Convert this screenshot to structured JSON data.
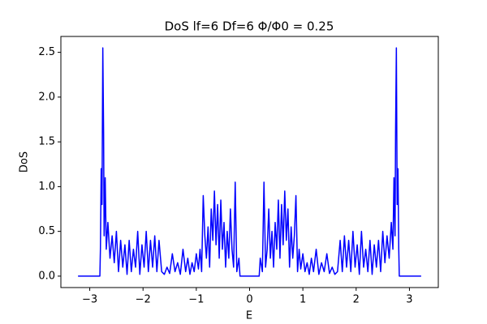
{
  "chart_data": {
    "type": "line",
    "title": "DoS lf=6 Df=6 Φ/Φ0 = 0.25",
    "x_label": "E",
    "y_label": "DoS",
    "xlim": [
      -3.542,
      3.542
    ],
    "ylim": [
      -0.1275,
      2.6775
    ],
    "xticks": [
      {
        "value": -3,
        "label": "−3"
      },
      {
        "value": -2,
        "label": "−2"
      },
      {
        "value": -1,
        "label": "−1"
      },
      0,
      1,
      2,
      3
    ],
    "yticks": [
      {
        "value": 0,
        "label": "0.0"
      },
      0.5,
      {
        "value": 1,
        "label": "1.0"
      },
      1.5,
      {
        "value": 2,
        "label": "2.0"
      },
      2.5
    ],
    "series": [
      {
        "color": "#0000ff",
        "x": [
          -3.22,
          -2.81,
          -2.8,
          -2.785,
          -2.77,
          -2.755,
          -2.74,
          -2.73,
          -2.71,
          -2.69,
          -2.66,
          -2.62,
          -2.58,
          -2.54,
          -2.5,
          -2.46,
          -2.42,
          -2.38,
          -2.34,
          -2.3,
          -2.26,
          -2.22,
          -2.18,
          -2.14,
          -2.1,
          -2.06,
          -2.02,
          -1.98,
          -1.94,
          -1.9,
          -1.86,
          -1.82,
          -1.78,
          -1.74,
          -1.7,
          -1.65,
          -1.6,
          -1.55,
          -1.5,
          -1.45,
          -1.4,
          -1.35,
          -1.3,
          -1.25,
          -1.2,
          -1.16,
          -1.12,
          -1.08,
          -1.04,
          -1.0,
          -0.96,
          -0.93,
          -0.9,
          -0.87,
          -0.84,
          -0.81,
          -0.78,
          -0.75,
          -0.72,
          -0.69,
          -0.66,
          -0.63,
          -0.6,
          -0.57,
          -0.54,
          -0.51,
          -0.48,
          -0.45,
          -0.42,
          -0.39,
          -0.36,
          -0.33,
          -0.3,
          -0.27,
          -0.24,
          -0.2,
          -0.18,
          -0.15,
          0,
          0.15,
          0.18,
          0.2,
          0.24,
          0.27,
          0.3,
          0.33,
          0.36,
          0.39,
          0.42,
          0.45,
          0.48,
          0.51,
          0.54,
          0.57,
          0.6,
          0.63,
          0.66,
          0.69,
          0.72,
          0.75,
          0.78,
          0.81,
          0.84,
          0.87,
          0.9,
          0.93,
          0.96,
          1.0,
          1.04,
          1.08,
          1.12,
          1.16,
          1.2,
          1.25,
          1.3,
          1.35,
          1.4,
          1.45,
          1.5,
          1.55,
          1.6,
          1.65,
          1.7,
          1.74,
          1.78,
          1.82,
          1.86,
          1.9,
          1.94,
          1.98,
          2.02,
          2.06,
          2.1,
          2.14,
          2.18,
          2.22,
          2.26,
          2.3,
          2.34,
          2.38,
          2.42,
          2.46,
          2.5,
          2.54,
          2.58,
          2.62,
          2.66,
          2.69,
          2.71,
          2.73,
          2.74,
          2.755,
          2.77,
          2.785,
          2.8,
          2.81,
          3.22
        ],
        "values": [
          0,
          0,
          0.3,
          1.2,
          0.8,
          2.55,
          1.6,
          0.45,
          1.1,
          0.3,
          0.6,
          0.2,
          0.45,
          0.15,
          0.5,
          0.05,
          0.4,
          0.1,
          0.35,
          0.02,
          0.4,
          0.05,
          0.3,
          0.1,
          0.5,
          0.02,
          0.35,
          0.1,
          0.5,
          0.05,
          0.4,
          0.1,
          0.45,
          0.05,
          0.4,
          0.05,
          0.02,
          0.1,
          0.03,
          0.25,
          0.05,
          0.15,
          0.02,
          0.3,
          0.05,
          0.2,
          0.02,
          0.15,
          0.05,
          0.25,
          0.08,
          0.3,
          0.05,
          0.9,
          0.45,
          0.2,
          0.55,
          0.1,
          0.75,
          0.4,
          0.95,
          0.35,
          0.8,
          0.2,
          0.85,
          0.3,
          0.6,
          0.1,
          0.5,
          0.2,
          0.75,
          0.3,
          0.1,
          1.05,
          0.05,
          0.2,
          0,
          0,
          0,
          0,
          0,
          0.2,
          0.05,
          1.05,
          0.1,
          0.3,
          0.75,
          0.2,
          0.5,
          0.1,
          0.6,
          0.3,
          0.85,
          0.2,
          0.8,
          0.35,
          0.95,
          0.4,
          0.75,
          0.1,
          0.55,
          0.2,
          0.45,
          0.9,
          0.05,
          0.3,
          0.08,
          0.25,
          0.05,
          0.15,
          0.02,
          0.2,
          0.05,
          0.3,
          0.02,
          0.15,
          0.05,
          0.25,
          0.03,
          0.1,
          0.02,
          0.05,
          0.4,
          0.05,
          0.45,
          0.1,
          0.4,
          0.05,
          0.5,
          0.1,
          0.35,
          0.02,
          0.5,
          0.1,
          0.3,
          0.05,
          0.4,
          0.02,
          0.35,
          0.1,
          0.4,
          0.05,
          0.5,
          0.15,
          0.45,
          0.2,
          0.6,
          0.3,
          1.1,
          0.45,
          1.6,
          2.55,
          0.8,
          1.2,
          0.3,
          0,
          0
        ]
      }
    ]
  }
}
